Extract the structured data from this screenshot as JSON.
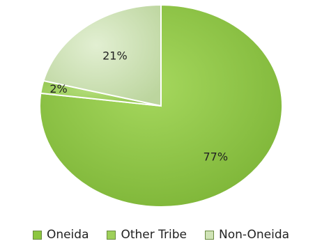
{
  "chart_data": {
    "type": "pie",
    "categories": [
      "Oneida",
      "Other Tribe",
      "Non-Oneida"
    ],
    "values": [
      77,
      2,
      21
    ],
    "data_labels": [
      "77%",
      "2%",
      "21%"
    ],
    "colors": [
      "#8cc63f",
      "#9ed05a",
      "#cfe3b6"
    ],
    "legend_position": "bottom"
  }
}
